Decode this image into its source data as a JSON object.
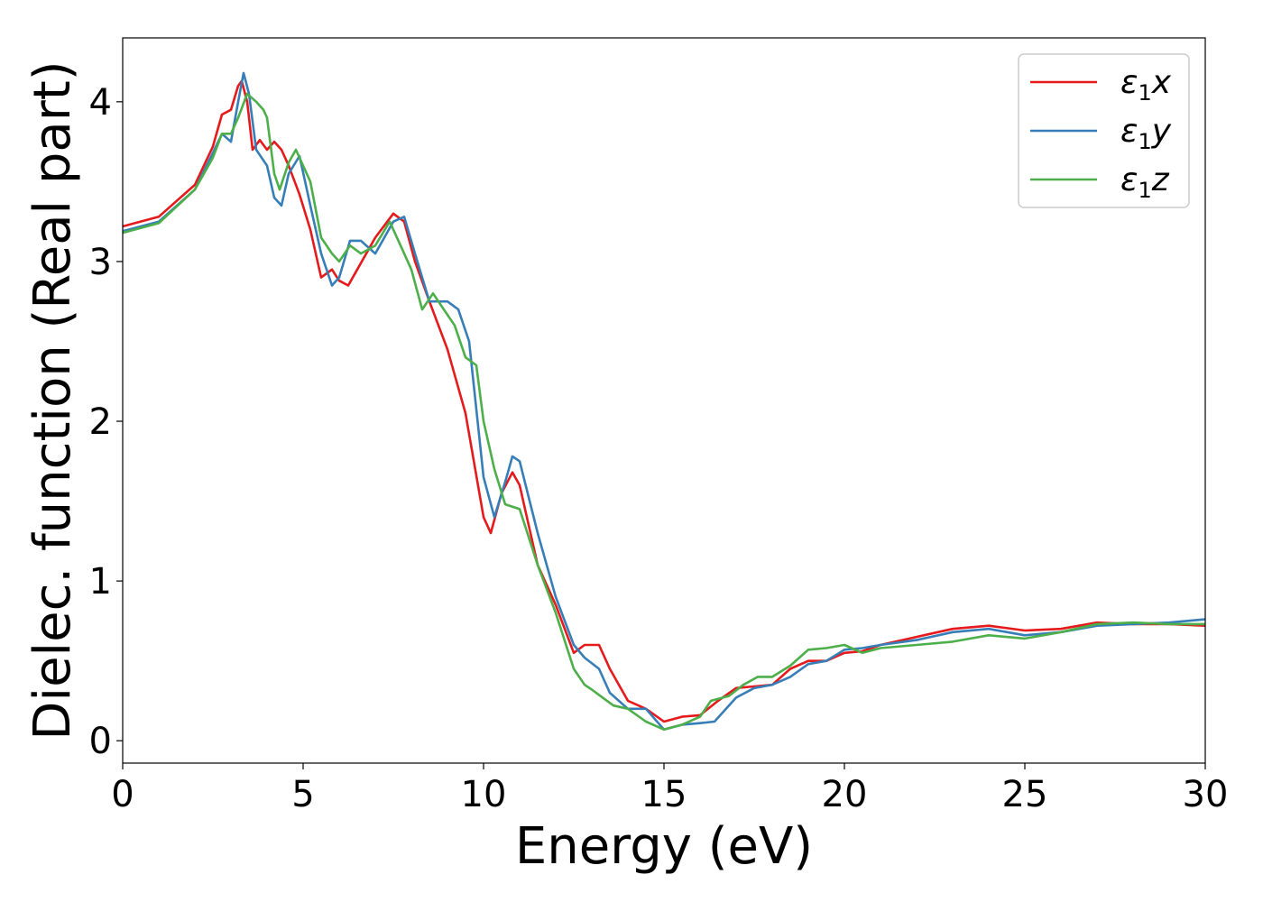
{
  "chart_data": {
    "type": "line",
    "title": "",
    "xlabel": "Energy (eV)",
    "ylabel": "Dielec. function (Real part)",
    "xlim": [
      0,
      30
    ],
    "ylim": [
      -0.14,
      4.4
    ],
    "xticks": [
      0,
      5,
      10,
      15,
      20,
      25,
      30
    ],
    "yticks": [
      0,
      1,
      2,
      3,
      4
    ],
    "grid": false,
    "legend_position": "top-right",
    "series": [
      {
        "name_main": "ε",
        "name_sub": "1",
        "name_suffix": "x",
        "color": "#e41a1c",
        "x": [
          0,
          1,
          2,
          2.5,
          2.75,
          3,
          3.2,
          3.3,
          3.45,
          3.6,
          3.8,
          4.0,
          4.2,
          4.4,
          4.6,
          4.9,
          5.2,
          5.5,
          5.8,
          6.0,
          6.25,
          6.5,
          7.0,
          7.5,
          7.8,
          8.1,
          8.5,
          9.0,
          9.5,
          10.0,
          10.2,
          10.5,
          10.8,
          11.0,
          11.5,
          12.0,
          12.5,
          12.8,
          13.2,
          13.5,
          14.0,
          14.5,
          15.0,
          15.5,
          16.0,
          16.5,
          17.0,
          17.5,
          18.0,
          18.5,
          19.0,
          19.5,
          20.0,
          20.5,
          21.0,
          22.0,
          23.0,
          24.0,
          25.0,
          26.0,
          27.0,
          28.0,
          29.0,
          30.0
        ],
        "y": [
          3.22,
          3.28,
          3.48,
          3.72,
          3.92,
          3.95,
          4.1,
          4.13,
          4.0,
          3.7,
          3.76,
          3.7,
          3.75,
          3.7,
          3.6,
          3.42,
          3.2,
          2.9,
          2.95,
          2.88,
          2.85,
          2.95,
          3.15,
          3.3,
          3.25,
          3.0,
          2.75,
          2.45,
          2.05,
          1.4,
          1.3,
          1.55,
          1.68,
          1.6,
          1.1,
          0.85,
          0.55,
          0.6,
          0.6,
          0.45,
          0.25,
          0.2,
          0.12,
          0.15,
          0.16,
          0.25,
          0.33,
          0.34,
          0.35,
          0.45,
          0.5,
          0.5,
          0.55,
          0.56,
          0.6,
          0.65,
          0.7,
          0.72,
          0.69,
          0.7,
          0.74,
          0.73,
          0.73,
          0.72
        ]
      },
      {
        "name_main": "ε",
        "name_sub": "1",
        "name_suffix": "y",
        "color": "#377eb8",
        "x": [
          0,
          1,
          2,
          2.5,
          2.75,
          3,
          3.2,
          3.35,
          3.5,
          3.7,
          4.0,
          4.2,
          4.4,
          4.6,
          4.9,
          5.2,
          5.5,
          5.8,
          6.0,
          6.3,
          6.6,
          7.0,
          7.5,
          7.8,
          8.1,
          8.5,
          9.0,
          9.3,
          9.6,
          10.0,
          10.3,
          10.6,
          10.8,
          11.0,
          11.5,
          12.0,
          12.5,
          12.8,
          13.2,
          13.5,
          14.0,
          14.5,
          15.0,
          15.5,
          16.0,
          16.4,
          17.0,
          17.5,
          18.0,
          18.5,
          19.0,
          19.5,
          20.0,
          20.5,
          21.0,
          22.0,
          23.0,
          24.0,
          25.0,
          26.0,
          27.0,
          28.0,
          29.0,
          30.0
        ],
        "y": [
          3.19,
          3.25,
          3.45,
          3.68,
          3.8,
          3.75,
          4.0,
          4.18,
          4.05,
          3.7,
          3.6,
          3.4,
          3.35,
          3.55,
          3.66,
          3.35,
          3.05,
          2.85,
          2.9,
          3.13,
          3.13,
          3.05,
          3.25,
          3.28,
          3.05,
          2.75,
          2.75,
          2.7,
          2.5,
          1.65,
          1.4,
          1.62,
          1.78,
          1.75,
          1.3,
          0.9,
          0.6,
          0.52,
          0.45,
          0.3,
          0.2,
          0.2,
          0.07,
          0.1,
          0.11,
          0.12,
          0.27,
          0.33,
          0.35,
          0.4,
          0.48,
          0.5,
          0.57,
          0.58,
          0.6,
          0.63,
          0.68,
          0.7,
          0.66,
          0.68,
          0.72,
          0.73,
          0.74,
          0.76
        ]
      },
      {
        "name_main": "ε",
        "name_sub": "1",
        "name_suffix": "z",
        "color": "#4daf4a",
        "x": [
          0,
          1,
          2,
          2.5,
          2.75,
          3,
          3.2,
          3.45,
          3.7,
          3.9,
          4.0,
          4.2,
          4.35,
          4.6,
          4.8,
          5.0,
          5.2,
          5.5,
          5.8,
          6.0,
          6.3,
          6.6,
          7.0,
          7.4,
          7.7,
          8.0,
          8.3,
          8.6,
          8.9,
          9.2,
          9.5,
          9.8,
          10.0,
          10.3,
          10.6,
          11.0,
          11.5,
          12.0,
          12.5,
          12.8,
          13.0,
          13.3,
          13.6,
          14.0,
          14.5,
          15.0,
          15.5,
          16.0,
          16.3,
          16.8,
          17.2,
          17.6,
          18.0,
          18.5,
          19.0,
          19.5,
          20.0,
          20.5,
          21.0,
          22.0,
          23.0,
          24.0,
          25.0,
          26.0,
          27.0,
          28.0,
          29.0,
          30.0
        ],
        "y": [
          3.18,
          3.24,
          3.45,
          3.65,
          3.8,
          3.8,
          3.9,
          4.05,
          4.0,
          3.95,
          3.9,
          3.55,
          3.45,
          3.62,
          3.7,
          3.6,
          3.5,
          3.15,
          3.05,
          3.0,
          3.1,
          3.05,
          3.1,
          3.25,
          3.1,
          2.95,
          2.7,
          2.8,
          2.7,
          2.6,
          2.4,
          2.35,
          2.0,
          1.7,
          1.48,
          1.45,
          1.1,
          0.8,
          0.45,
          0.35,
          0.32,
          0.27,
          0.22,
          0.2,
          0.12,
          0.07,
          0.1,
          0.15,
          0.25,
          0.28,
          0.35,
          0.4,
          0.4,
          0.47,
          0.57,
          0.58,
          0.6,
          0.55,
          0.58,
          0.6,
          0.62,
          0.66,
          0.64,
          0.68,
          0.73,
          0.74,
          0.73,
          0.73
        ]
      }
    ]
  }
}
